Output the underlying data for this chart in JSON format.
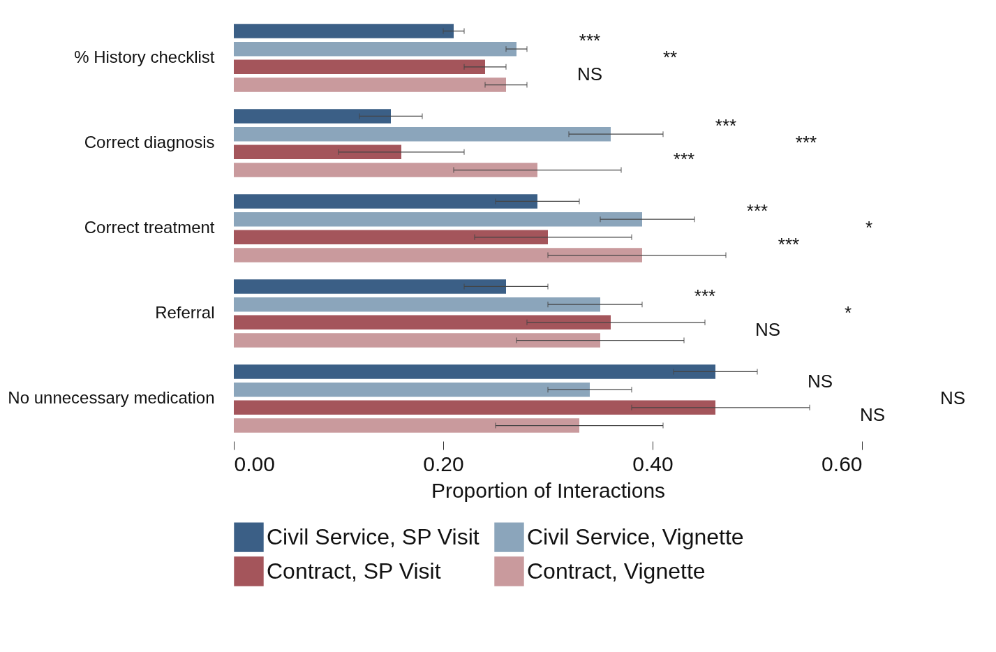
{
  "chart_data": {
    "type": "bar",
    "orientation": "horizontal",
    "xlabel": "Proportion of Interactions",
    "categories": [
      "% History checklist",
      "Correct diagnosis",
      "Correct treatment",
      "Referral",
      "No unnecessary medication"
    ],
    "series": [
      {
        "name": "Civil Service, SP Visit",
        "color": "#3b5f86",
        "values": [
          0.21,
          0.15,
          0.29,
          0.26,
          0.46
        ],
        "errors": [
          [
            0.2,
            0.22
          ],
          [
            0.12,
            0.18
          ],
          [
            0.25,
            0.33
          ],
          [
            0.22,
            0.3
          ],
          [
            0.42,
            0.5
          ]
        ]
      },
      {
        "name": "Civil Service, Vignette",
        "color": "#8ba5bb",
        "values": [
          0.27,
          0.36,
          0.39,
          0.35,
          0.34
        ],
        "errors": [
          [
            0.26,
            0.28
          ],
          [
            0.32,
            0.41
          ],
          [
            0.35,
            0.44
          ],
          [
            0.3,
            0.39
          ],
          [
            0.3,
            0.38
          ]
        ]
      },
      {
        "name": "Contract, SP Visit",
        "color": "#a4555b",
        "values": [
          0.24,
          0.16,
          0.3,
          0.36,
          0.46
        ],
        "errors": [
          [
            0.22,
            0.26
          ],
          [
            0.1,
            0.22
          ],
          [
            0.23,
            0.38
          ],
          [
            0.28,
            0.45
          ],
          [
            0.38,
            0.55
          ]
        ]
      },
      {
        "name": "Contract, Vignette",
        "color": "#c99a9d",
        "values": [
          0.26,
          0.29,
          0.39,
          0.35,
          0.33
        ],
        "errors": [
          [
            0.24,
            0.28
          ],
          [
            0.21,
            0.37
          ],
          [
            0.3,
            0.47
          ],
          [
            0.27,
            0.43
          ],
          [
            0.25,
            0.41
          ]
        ]
      }
    ],
    "xlim": [
      0,
      0.6
    ],
    "xticks": [
      {
        "value": 0,
        "label": "0.00"
      },
      {
        "value": 0.2,
        "label": "0.20"
      },
      {
        "value": 0.4,
        "label": "0.40"
      },
      {
        "value": 0.6,
        "label": "0.60"
      }
    ],
    "legend": "bottom",
    "grid": false,
    "annotations": [
      "***",
      "NS",
      "**",
      "***",
      "***",
      "***",
      "***",
      "***",
      "*",
      "***",
      "NS",
      "*",
      "NS",
      "NS",
      "NS"
    ]
  }
}
